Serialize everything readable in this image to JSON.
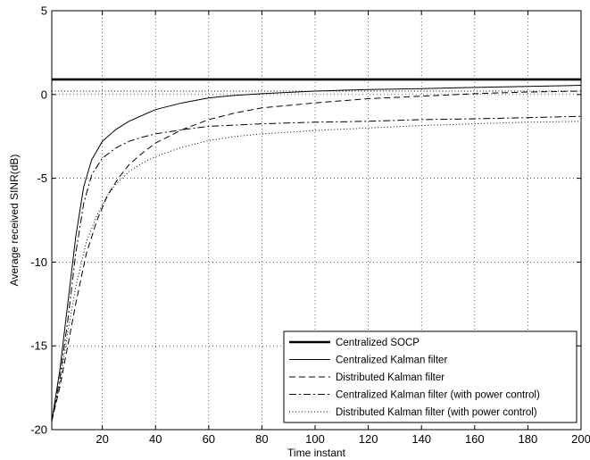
{
  "chart_data": {
    "type": "line",
    "title": "",
    "xlabel": "Time instant",
    "ylabel": "Average received SINR(dB)",
    "xlim": [
      1,
      200
    ],
    "ylim": [
      -20,
      5
    ],
    "xticks": [
      20,
      40,
      60,
      80,
      100,
      120,
      140,
      160,
      180,
      200
    ],
    "yticks": [
      -20,
      -15,
      -10,
      -5,
      0,
      5
    ],
    "grid": true,
    "legend_position": "bottom-right",
    "reference_line": 0.2,
    "series": [
      {
        "name": "Centralized SOCP",
        "style": "solid-thick",
        "x": [
          1,
          200
        ],
        "y": [
          0.9,
          0.9
        ]
      },
      {
        "name": "Centralized Kalman filter",
        "style": "solid",
        "x": [
          1,
          4,
          7,
          10,
          13,
          16,
          20,
          25,
          30,
          40,
          50,
          60,
          70,
          80,
          100,
          120,
          140,
          160,
          180,
          200
        ],
        "y": [
          -19.5,
          -16.5,
          -12.5,
          -8.5,
          -5.5,
          -3.9,
          -2.8,
          -2.1,
          -1.6,
          -0.9,
          -0.5,
          -0.2,
          -0.05,
          0.05,
          0.2,
          0.3,
          0.35,
          0.42,
          0.48,
          0.55
        ]
      },
      {
        "name": "Distributed Kalman filter",
        "style": "dashed",
        "x": [
          1,
          4,
          7,
          10,
          14,
          18,
          22,
          26,
          30,
          35,
          40,
          50,
          60,
          70,
          80,
          100,
          120,
          140,
          160,
          180,
          200
        ],
        "y": [
          -19.5,
          -17.5,
          -15,
          -12.5,
          -9.5,
          -7.5,
          -6.0,
          -5.0,
          -4.2,
          -3.5,
          -2.9,
          -2.1,
          -1.5,
          -1.1,
          -0.8,
          -0.5,
          -0.25,
          -0.1,
          0.05,
          0.15,
          0.2
        ]
      },
      {
        "name": "Centralized Kalman filter (with power control)",
        "style": "dashdot",
        "x": [
          1,
          4,
          7,
          10,
          13,
          16,
          20,
          25,
          30,
          35,
          40,
          50,
          60,
          80,
          100,
          120,
          140,
          160,
          180,
          200
        ],
        "y": [
          -19.5,
          -17,
          -13.5,
          -9.5,
          -6.5,
          -4.8,
          -3.8,
          -3.2,
          -2.8,
          -2.55,
          -2.35,
          -2.1,
          -1.9,
          -1.75,
          -1.65,
          -1.6,
          -1.5,
          -1.45,
          -1.38,
          -1.3
        ]
      },
      {
        "name": "Distributed Kalman filter (with power control)",
        "style": "dotted",
        "x": [
          1,
          4,
          7,
          10,
          14,
          18,
          22,
          26,
          30,
          35,
          40,
          50,
          60,
          70,
          80,
          100,
          120,
          140,
          160,
          180,
          200
        ],
        "y": [
          -19.5,
          -17.3,
          -14.2,
          -11.5,
          -8.8,
          -7.2,
          -6.0,
          -5.2,
          -4.6,
          -4.1,
          -3.7,
          -3.15,
          -2.75,
          -2.5,
          -2.35,
          -2.15,
          -2.0,
          -1.85,
          -1.75,
          -1.65,
          -1.6
        ]
      }
    ]
  }
}
